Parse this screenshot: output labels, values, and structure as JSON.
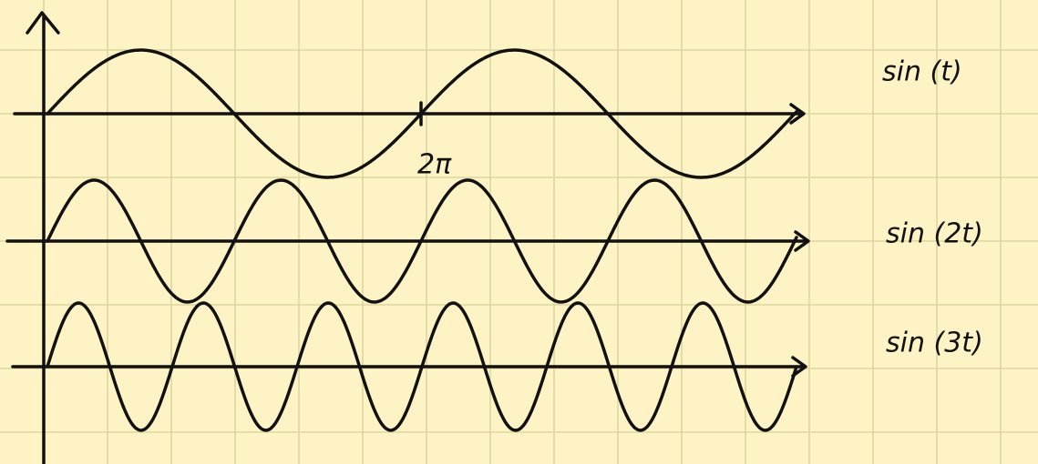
{
  "curves": [
    {
      "label": "sin (t)"
    },
    {
      "label": "sin (2t)"
    },
    {
      "label": "sin (3t)"
    }
  ],
  "period_label": "2π"
}
